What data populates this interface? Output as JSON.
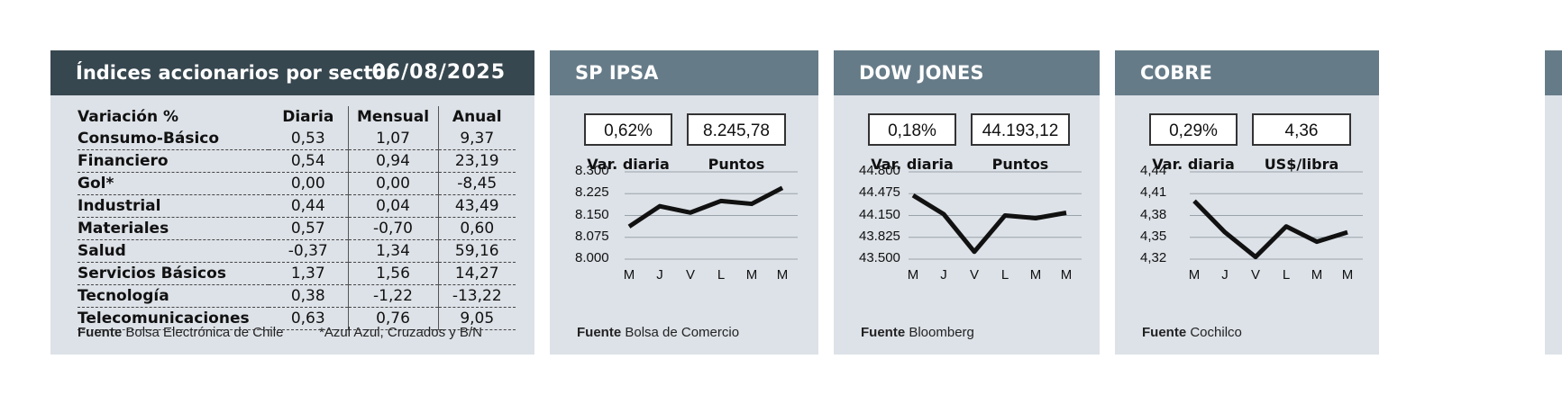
{
  "sector_table": {
    "title": "Índices accionarios por sector",
    "date": "06/08/2025",
    "headers": [
      "Variación %",
      "Diaria",
      "Mensual",
      "Anual"
    ],
    "rows": [
      {
        "name": "Consumo-Básico",
        "diaria": "0,53",
        "mensual": "1,07",
        "anual": "9,37"
      },
      {
        "name": "Financiero",
        "diaria": "0,54",
        "mensual": "0,94",
        "anual": "23,19"
      },
      {
        "name": "Gol*",
        "diaria": "0,00",
        "mensual": "0,00",
        "anual": "-8,45"
      },
      {
        "name": "Industrial",
        "diaria": "0,44",
        "mensual": "0,04",
        "anual": "43,49"
      },
      {
        "name": "Materiales",
        "diaria": "0,57",
        "mensual": "-0,70",
        "anual": "0,60"
      },
      {
        "name": "Salud",
        "diaria": "-0,37",
        "mensual": "1,34",
        "anual": "59,16"
      },
      {
        "name": "Servicios Básicos",
        "diaria": "1,37",
        "mensual": "1,56",
        "anual": "14,27"
      },
      {
        "name": "Tecnología",
        "diaria": "0,38",
        "mensual": "-1,22",
        "anual": "-13,22"
      },
      {
        "name": "Telecomunicaciones",
        "diaria": "0,63",
        "mensual": "0,76",
        "anual": "9,05"
      }
    ],
    "source_label": "Fuente",
    "source": "Bolsa Electrónica de Chile",
    "note": "*Azul Azul, Cruzados y B/N"
  },
  "colors": {
    "header_dark": "#37474f",
    "header_mid": "#667b88",
    "panel_bg": "#dde2e8",
    "line": "#111111"
  },
  "chart_data": [
    {
      "type": "line",
      "title": "SP IPSA",
      "box1_value": "0,62%",
      "box1_label": "Var. diaria",
      "box2_value": "8.245,78",
      "box2_label": "Puntos",
      "categories": [
        "M",
        "J",
        "V",
        "L",
        "M",
        "M"
      ],
      "values": [
        8112,
        8182,
        8160,
        8200,
        8190,
        8245
      ],
      "yticks": [
        "8.300",
        "8.225",
        "8.150",
        "8.075",
        "8.000"
      ],
      "ylim": [
        8000,
        8300
      ],
      "source_label": "Fuente",
      "source": "Bolsa de Comercio"
    },
    {
      "type": "line",
      "title": "DOW JONES",
      "box1_value": "0,18%",
      "box1_label": "Var. diaria",
      "box2_value": "44.193,12",
      "box2_label": "Puntos",
      "categories": [
        "M",
        "J",
        "V",
        "L",
        "M",
        "M"
      ],
      "values": [
        44450,
        44170,
        43610,
        44150,
        44110,
        44190
      ],
      "yticks": [
        "44.800",
        "44.475",
        "44.150",
        "43.825",
        "43.500"
      ],
      "ylim": [
        43500,
        44800
      ],
      "source_label": "Fuente",
      "source": "Bloomberg"
    },
    {
      "type": "line",
      "title": "COBRE",
      "box1_value": "0,29%",
      "box1_label": "Var. diaria",
      "box2_value": "4,36",
      "box2_label": "US$/libra",
      "categories": [
        "M",
        "J",
        "V",
        "L",
        "M",
        "M"
      ],
      "values": [
        4.4,
        4.357,
        4.323,
        4.365,
        4.344,
        4.357
      ],
      "yticks": [
        "4,44",
        "4,41",
        "4,38",
        "4,35",
        "4,32"
      ],
      "ylim": [
        4.32,
        4.44
      ],
      "source_label": "Fuente",
      "source": "Cochilco"
    }
  ]
}
